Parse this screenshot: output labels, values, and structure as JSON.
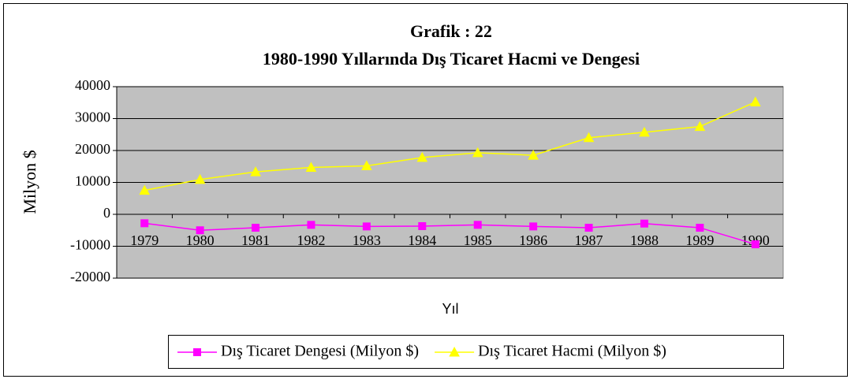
{
  "chart_data": {
    "type": "line",
    "title": "Grafik : 22",
    "subtitle": "1980-1990 Yıllarında Dış Ticaret Hacmi ve Dengesi",
    "y_label": "Milyon $",
    "x_label": "Yıl",
    "categories": [
      "1979",
      "1980",
      "1981",
      "1982",
      "1983",
      "1984",
      "1985",
      "1986",
      "1987",
      "1988",
      "1989",
      "1990"
    ],
    "series": [
      {
        "name": "Dış Ticaret Dengesi (Milyon $)",
        "color": "#ff00ff",
        "marker": "square",
        "values": [
          -2800,
          -5000,
          -4200,
          -3300,
          -3800,
          -3700,
          -3300,
          -3800,
          -4200,
          -2900,
          -4200,
          -9400
        ]
      },
      {
        "name": "Dış Ticaret Hacmi (Milyon $)",
        "color": "#ffff00",
        "marker": "triangle",
        "values": [
          7500,
          10900,
          13300,
          14700,
          15200,
          17800,
          19300,
          18500,
          24000,
          25700,
          27500,
          35200
        ]
      }
    ],
    "ylim": [
      -20000,
      40000
    ],
    "yticks": [
      -20000,
      -10000,
      0,
      10000,
      20000,
      30000,
      40000
    ],
    "grid": true,
    "legend": "bottom"
  }
}
